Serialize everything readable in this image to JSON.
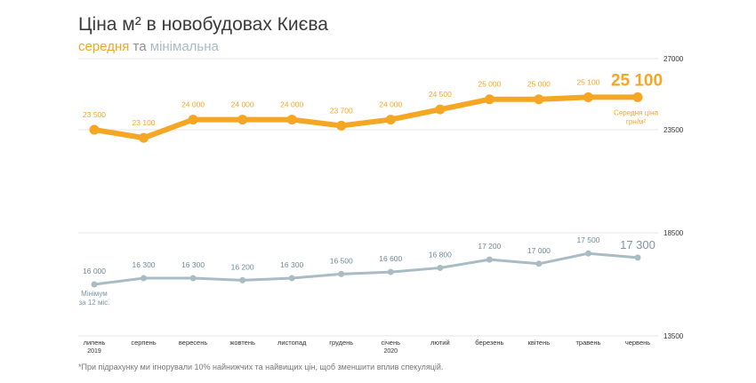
{
  "header": {
    "title": "Ціна м² в новобудовах Києва",
    "subtitle_avg": "середня",
    "subtitle_conj": "та",
    "subtitle_min": "мінімальна"
  },
  "footnote": "*При підрахунку ми ігнорували 10% найнижчих та найвищих цін, щоб зменшити вплив спекуляцій.",
  "colors": {
    "average": "#f5a623",
    "minimum": "#a9bcc4",
    "grid": "#e6e6e6"
  },
  "chart_data": {
    "type": "line",
    "categories": [
      "липень",
      "серпень",
      "вересень",
      "жовтень",
      "листопад",
      "грудень",
      "січень",
      "лютий",
      "березень",
      "квітень",
      "травень",
      "червень"
    ],
    "year_labels": [
      "2019",
      "",
      "",
      "",
      "",
      "",
      "2020",
      "",
      "",
      "",
      "",
      ""
    ],
    "series": [
      {
        "key": "average",
        "values": [
          23500,
          23100,
          24000,
          24000,
          24000,
          23700,
          24000,
          24500,
          25000,
          25000,
          25100,
          25100
        ],
        "value_labels": [
          "23 500",
          "23 100",
          "24 000",
          "24 000",
          "24 000",
          "23 700",
          "24 000",
          "24 500",
          "25 000",
          "25 000",
          "25 100",
          "25 100"
        ],
        "end_label": "Середня ціна",
        "end_unit": "грн/м²"
      },
      {
        "key": "minimum",
        "values": [
          16000,
          16300,
          16300,
          16200,
          16300,
          16500,
          16600,
          16800,
          17200,
          17000,
          17500,
          17300
        ],
        "value_labels": [
          "16 000",
          "16 300",
          "16 300",
          "16 200",
          "16 300",
          "16 500",
          "16 600",
          "16 800",
          "17 200",
          "17 000",
          "17 500",
          "17 300"
        ],
        "start_label": "Мінімум",
        "start_sub": "за 12 міс."
      }
    ],
    "axes": {
      "upper": {
        "min": 23500,
        "max": 27000,
        "ticks": [
          "27000",
          "23500"
        ]
      },
      "lower": {
        "min": 13500,
        "max": 18500,
        "ticks": [
          "18500",
          "13500"
        ]
      }
    },
    "grid": true
  }
}
